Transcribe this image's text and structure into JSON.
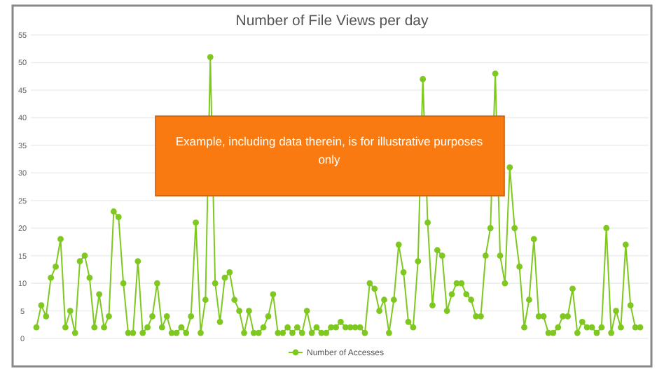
{
  "chart_data": {
    "type": "line",
    "title": "Number of File Views per day",
    "categories": [
      null,
      null,
      null,
      null,
      null,
      null,
      null,
      null,
      null,
      null,
      null,
      null,
      null,
      null,
      null,
      null,
      null,
      null,
      null,
      null,
      null,
      null,
      null,
      null,
      null,
      null,
      null,
      null,
      null,
      null,
      null,
      null,
      null,
      null,
      null,
      null,
      null,
      null,
      null,
      null,
      null,
      null,
      null,
      null,
      null,
      null,
      null,
      null,
      null,
      null,
      null,
      null,
      null,
      null,
      null,
      null,
      null,
      null,
      null,
      null,
      null,
      null,
      null,
      null,
      null,
      null,
      null,
      null,
      null,
      null,
      null,
      null,
      null,
      null,
      null,
      null,
      null,
      null,
      null,
      null,
      null,
      null,
      null,
      null,
      null,
      null,
      null,
      null,
      null,
      null,
      null,
      null,
      null,
      null,
      null,
      null,
      null,
      null,
      null,
      null,
      null,
      null,
      null,
      null,
      null,
      null,
      null,
      null,
      null,
      null,
      null,
      null,
      null,
      null,
      null,
      null,
      null,
      null,
      null,
      null,
      null,
      null,
      null,
      null,
      null,
      null
    ],
    "series": [
      {
        "name": "Number of Accesses",
        "color": "#7ec820",
        "values": [
          2,
          6,
          4,
          11,
          13,
          18,
          2,
          5,
          1,
          14,
          15,
          11,
          2,
          8,
          2,
          4,
          23,
          22,
          10,
          1,
          1,
          14,
          1,
          2,
          4,
          10,
          2,
          4,
          1,
          1,
          2,
          1,
          4,
          21,
          1,
          7,
          51,
          10,
          3,
          11,
          12,
          7,
          5,
          1,
          5,
          1,
          1,
          2,
          4,
          8,
          1,
          1,
          2,
          1,
          2,
          1,
          5,
          1,
          2,
          1,
          1,
          2,
          2,
          3,
          2,
          2,
          2,
          2,
          1,
          10,
          9,
          5,
          7,
          1,
          7,
          17,
          12,
          3,
          2,
          14,
          47,
          21,
          6,
          16,
          15,
          5,
          8,
          10,
          10,
          8,
          7,
          4,
          4,
          15,
          20,
          48,
          15,
          10,
          31,
          20,
          13,
          2,
          7,
          18,
          4,
          4,
          1,
          1,
          2,
          4,
          4,
          9,
          1,
          3,
          2,
          2,
          1,
          2,
          20,
          1,
          5,
          2,
          17,
          6,
          2,
          2
        ]
      }
    ],
    "ylim": [
      0,
      55
    ],
    "yticks": [
      0,
      5,
      10,
      15,
      20,
      25,
      30,
      35,
      40,
      45,
      50,
      55
    ],
    "grid": "y",
    "legend": "bottom",
    "marker": "circle",
    "annotations": [
      "Example, including data therein, is for illustrative purposes only"
    ]
  }
}
